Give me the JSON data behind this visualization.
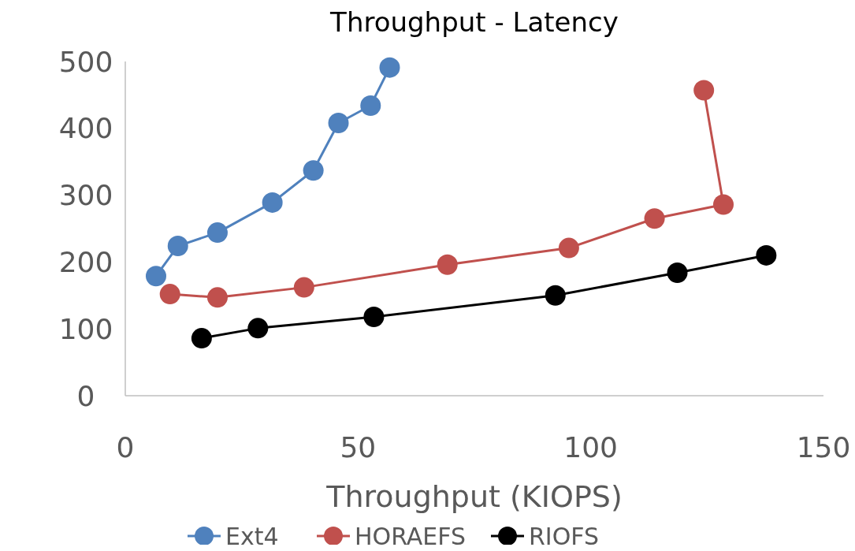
{
  "chart_data": {
    "type": "line",
    "title": "Throughput - Latency",
    "xlabel": "Throughput  (KIOPS)",
    "xlim": [
      0,
      150
    ],
    "xticks": [
      0,
      50,
      100,
      150
    ],
    "ylim": [
      0,
      500
    ],
    "yticks": [
      0,
      100,
      200,
      300,
      400,
      500
    ],
    "marker": "circle",
    "legend": "bottom",
    "grid": false,
    "series": [
      {
        "name": "Ext4",
        "color": "#4f81bd",
        "x": [
          6.6,
          11.3,
          19.8,
          31.6,
          40.4,
          45.8,
          52.7,
          56.8
        ],
        "values": [
          179,
          224,
          244,
          289,
          337,
          408,
          434,
          491
        ]
      },
      {
        "name": "HORAEFS",
        "color": "#c0504d",
        "x": [
          9.6,
          19.8,
          38.4,
          69.2,
          95.3,
          113.7,
          128.5,
          124.3
        ],
        "values": [
          152,
          147,
          162,
          196,
          221,
          265,
          286,
          457
        ]
      },
      {
        "name": "RIOFS",
        "color": "#000000",
        "x": [
          16.4,
          28.5,
          53.4,
          92.4,
          118.6,
          137.7
        ],
        "values": [
          86,
          101,
          118,
          150,
          184,
          210
        ]
      }
    ]
  }
}
